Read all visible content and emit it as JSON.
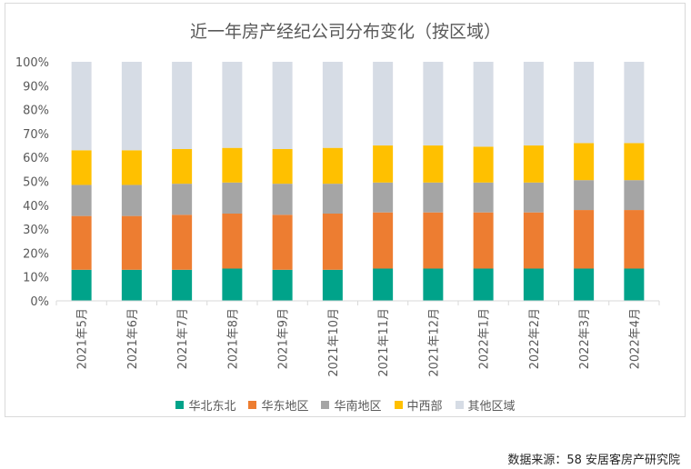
{
  "chart_data": {
    "type": "bar",
    "stacked": true,
    "title": "近一年房产经纪公司分布变化（按区域）",
    "categories": [
      "2021年5月",
      "2021年6月",
      "2021年7月",
      "2021年8月",
      "2021年9月",
      "2021年10月",
      "2021年11月",
      "2021年12月",
      "2022年1月",
      "2022年2月",
      "2022年3月",
      "2022年4月"
    ],
    "series": [
      {
        "name": "华北东北",
        "color": "#00a38a",
        "values": [
          13,
          13,
          13,
          13.5,
          13,
          13,
          13.5,
          13.5,
          13.5,
          13.5,
          13.5,
          13.5
        ]
      },
      {
        "name": "华东地区",
        "color": "#ed7d31",
        "values": [
          22.5,
          22.5,
          23,
          23,
          23,
          23.5,
          23.5,
          23.5,
          23.5,
          23.5,
          24.5,
          24.5
        ]
      },
      {
        "name": "华南地区",
        "color": "#a5a5a5",
        "values": [
          13,
          13,
          13,
          13,
          13,
          12.5,
          12.5,
          12.5,
          12.5,
          12.5,
          12.5,
          12.5
        ]
      },
      {
        "name": "中西部",
        "color": "#ffc000",
        "values": [
          14.5,
          14.5,
          14.5,
          14.5,
          14.5,
          15,
          15.5,
          15.5,
          15,
          15.5,
          15.5,
          15.5
        ]
      },
      {
        "name": "其他区域",
        "color": "#d6dce5",
        "values": [
          37,
          37,
          36.5,
          36,
          36.5,
          36,
          35,
          35,
          35.5,
          35,
          34,
          34
        ]
      }
    ],
    "yticks": [
      "0%",
      "10%",
      "20%",
      "30%",
      "40%",
      "50%",
      "60%",
      "70%",
      "80%",
      "90%",
      "100%"
    ],
    "ylim": [
      0,
      100
    ],
    "legend_position": "bottom"
  },
  "source_text": "数据来源：58 安居客房产研究院"
}
